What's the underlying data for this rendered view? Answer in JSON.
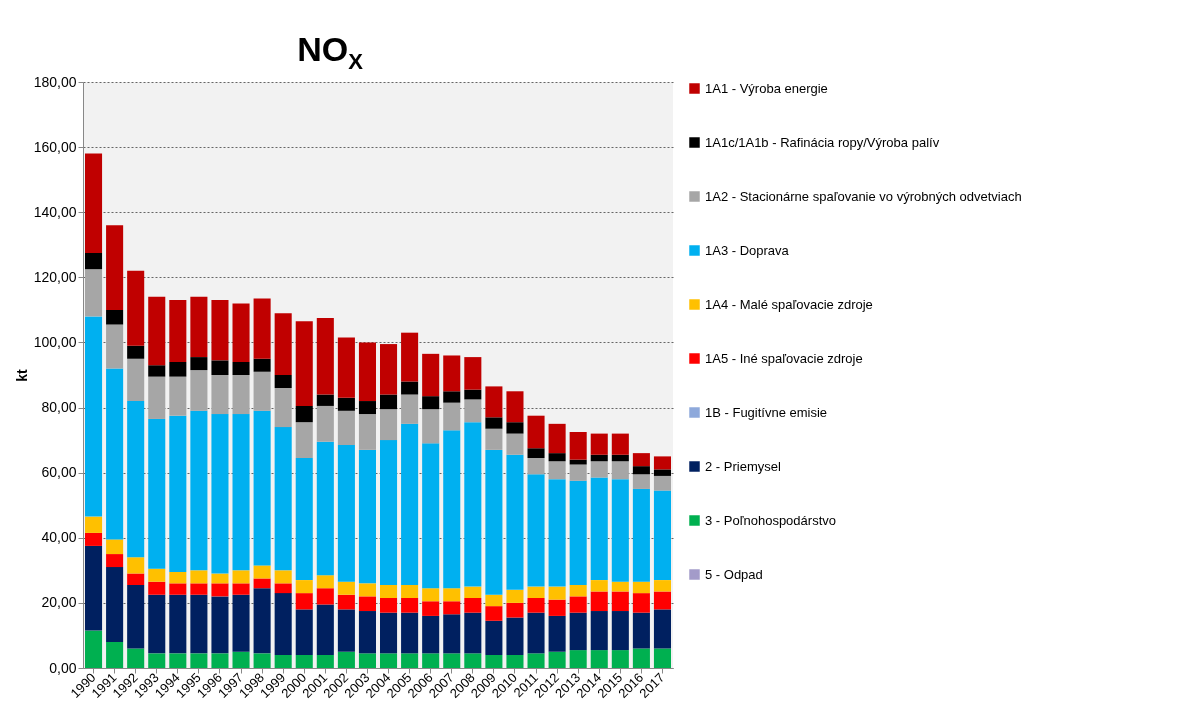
{
  "chart_data": {
    "type": "bar",
    "title": "NO$_{X}$",
    "ylabel": "kt",
    "stacked": true,
    "legend": "right",
    "grid": "y",
    "categories": [
      "1990",
      "1991",
      "1992",
      "1993",
      "1994",
      "1995",
      "1996",
      "1997",
      "1998",
      "1999",
      "2000",
      "2001",
      "2002",
      "2003",
      "2004",
      "2005",
      "2006",
      "2007",
      "2008",
      "2009",
      "2010",
      "2011",
      "2012",
      "2013",
      "2014",
      "2015",
      "2016",
      "2017"
    ],
    "ylim": [
      0,
      180
    ],
    "yticks": [
      {
        "value": 0,
        "label": "0,00"
      },
      {
        "value": 20,
        "label": "20,00"
      },
      {
        "value": 40,
        "label": "40,00"
      },
      {
        "value": 60,
        "label": "60,00"
      },
      {
        "value": 80,
        "label": "80,00"
      },
      {
        "value": 100,
        "label": "100,00"
      },
      {
        "value": 120,
        "label": "120,00"
      },
      {
        "value": 140,
        "label": "140,00"
      },
      {
        "value": 160,
        "label": "160,00"
      },
      {
        "value": 180,
        "label": "180,00"
      }
    ],
    "series": [
      {
        "name": "5 - Odpad",
        "color": "#a39bc9",
        "values": [
          0,
          0,
          0,
          0,
          0,
          0,
          0,
          0,
          0,
          0,
          0,
          0,
          0,
          0,
          0,
          0,
          0,
          0,
          0,
          0,
          0,
          0,
          0,
          0,
          0,
          0,
          0,
          0
        ]
      },
      {
        "name": "3 - Poľnohospodárstvo",
        "color": "#00b050",
        "values": [
          11.5,
          8,
          6,
          4.5,
          4.5,
          4.5,
          4.5,
          5,
          4.5,
          4,
          4,
          4,
          5,
          4.5,
          4.5,
          4.5,
          4.5,
          4.5,
          4.5,
          4,
          4,
          4.5,
          5,
          5.5,
          5.5,
          5.5,
          6,
          6
        ]
      },
      {
        "name": "2 - Priemysel",
        "color": "#002060",
        "values": [
          26,
          23,
          19.5,
          18,
          18,
          18,
          17.5,
          17.5,
          20,
          19,
          14,
          15.5,
          13,
          13,
          12.5,
          12.5,
          11.5,
          12,
          12.5,
          10.5,
          11.5,
          12.5,
          11,
          11.5,
          12,
          12,
          11,
          12
        ]
      },
      {
        "name": "1B - Fugitívne emisie",
        "color": "#8ea9db",
        "values": [
          0,
          0,
          0,
          0,
          0,
          0,
          0,
          0,
          0,
          0,
          0,
          0,
          0,
          0,
          0,
          0,
          0,
          0,
          0,
          0,
          0,
          0,
          0,
          0,
          0,
          0,
          0,
          0
        ]
      },
      {
        "name": "1A5 - Iné spaľovacie zdroje",
        "color": "#ff0000",
        "values": [
          4,
          4,
          3.5,
          4,
          3.5,
          3.5,
          4,
          3.5,
          3,
          3,
          5,
          5,
          4.5,
          4.5,
          4.5,
          4.5,
          4.5,
          4,
          4.5,
          4.5,
          4.5,
          4.5,
          5,
          5,
          6,
          6,
          6,
          5.5
        ]
      },
      {
        "name": "1A4 - Malé spaľovacie zdroje",
        "color": "#ffc000",
        "values": [
          5,
          4.5,
          5,
          4,
          3.5,
          4,
          3,
          4,
          4,
          4,
          4,
          4,
          4,
          4,
          4,
          4,
          4,
          4,
          3.5,
          3.5,
          4,
          3.5,
          4,
          3.5,
          3.5,
          3,
          3.5,
          3.5
        ]
      },
      {
        "name": "1A3 - Doprava",
        "color": "#00b0f0",
        "values": [
          61.5,
          52.5,
          48,
          46,
          48,
          49,
          49,
          48,
          47.5,
          44,
          37.5,
          41,
          42,
          41,
          44.5,
          49.5,
          44.5,
          48.5,
          50.5,
          44.5,
          41.5,
          34.5,
          33,
          32,
          31.5,
          31.5,
          28.5,
          27.5
        ]
      },
      {
        "name": "1A2 - Stacionárne spaľovanie vo výrobných odvetviach",
        "color": "#a6a6a6",
        "values": [
          14.5,
          13.5,
          13,
          13,
          12,
          12.5,
          12,
          12,
          12,
          12,
          11,
          11,
          10.5,
          11,
          9.5,
          9,
          10.5,
          8.5,
          7,
          6.5,
          6.5,
          5,
          5.5,
          5,
          5,
          5.5,
          4.5,
          4.5
        ]
      },
      {
        "name": "1A1c/1A1b - Rafinácia ropy/Výroba palív",
        "color": "#000000",
        "values": [
          5,
          4.5,
          4,
          3.5,
          4.5,
          4,
          4.5,
          4,
          4,
          4,
          5,
          3.5,
          4,
          4,
          4.5,
          4,
          4,
          3.5,
          3,
          3.5,
          3.5,
          3,
          2.5,
          1.5,
          2,
          2,
          2.5,
          2
        ]
      },
      {
        "name": "1A1 - Výroba energie",
        "color": "#c00000",
        "values": [
          30.5,
          26,
          23,
          21,
          19,
          18.5,
          18.5,
          18,
          18.5,
          19,
          26,
          23.5,
          18.5,
          18,
          15.5,
          15,
          13,
          11,
          10,
          9.5,
          9.5,
          10,
          9,
          8.5,
          6.5,
          6.5,
          4,
          4
        ]
      }
    ]
  }
}
